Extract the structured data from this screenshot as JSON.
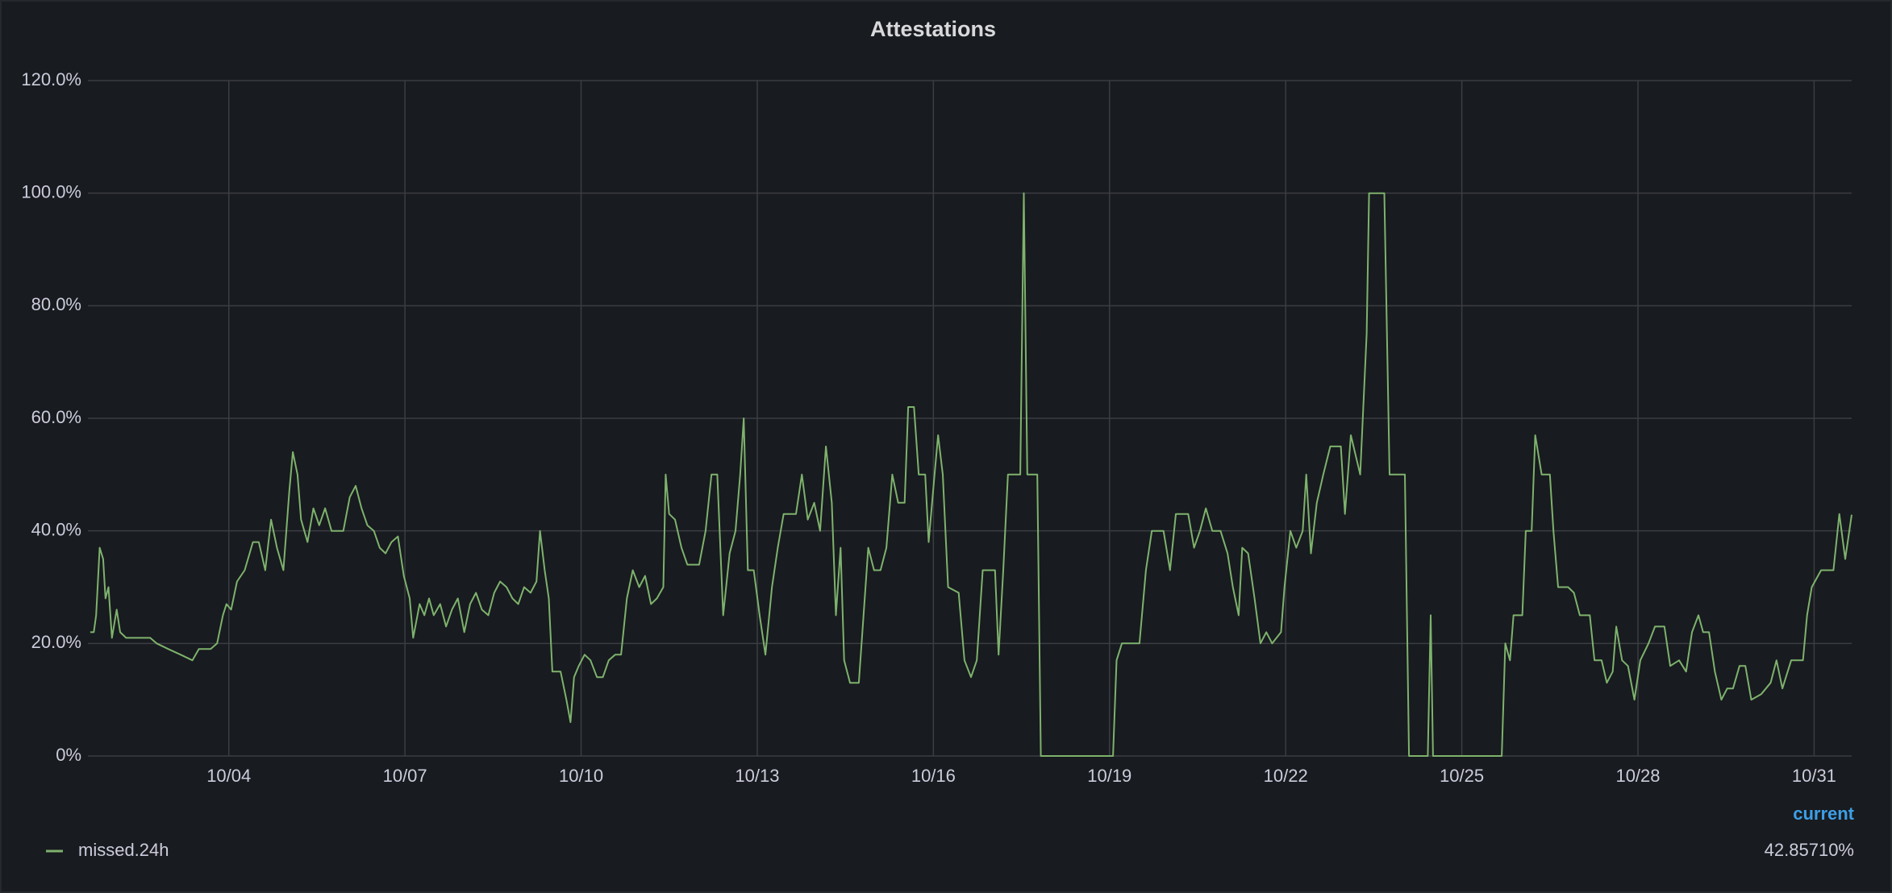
{
  "chart_data": {
    "type": "line",
    "title": "Attestations",
    "x": [
      1.64,
      1.7,
      1.74,
      1.8,
      1.86,
      1.9,
      1.95,
      2.01,
      2.09,
      2.15,
      2.25,
      2.36,
      2.66,
      2.77,
      2.97,
      3.18,
      3.38,
      3.49,
      3.69,
      3.8,
      3.9,
      3.96,
      4.04,
      4.14,
      4.27,
      4.41,
      4.51,
      4.62,
      4.72,
      4.82,
      4.93,
      5.03,
      5.09,
      5.17,
      5.23,
      5.34,
      5.44,
      5.54,
      5.64,
      5.75,
      5.95,
      6.06,
      6.16,
      6.26,
      6.36,
      6.47,
      6.57,
      6.67,
      6.77,
      6.88,
      6.98,
      7.08,
      7.14,
      7.25,
      7.33,
      7.41,
      7.49,
      7.6,
      7.7,
      7.8,
      7.9,
      8.01,
      8.11,
      8.21,
      8.31,
      8.42,
      8.52,
      8.62,
      8.73,
      8.83,
      8.93,
      9.03,
      9.14,
      9.24,
      9.3,
      9.38,
      9.45,
      9.51,
      9.65,
      9.75,
      9.82,
      9.88,
      9.96,
      10.06,
      10.16,
      10.27,
      10.37,
      10.47,
      10.58,
      10.68,
      10.78,
      10.88,
      10.99,
      11.09,
      11.19,
      11.29,
      11.4,
      11.44,
      11.5,
      11.6,
      11.71,
      11.81,
      12.01,
      12.12,
      12.22,
      12.32,
      12.42,
      12.53,
      12.63,
      12.71,
      12.77,
      12.84,
      12.94,
      13.04,
      13.14,
      13.25,
      13.35,
      13.45,
      13.66,
      13.76,
      13.86,
      13.97,
      14.07,
      14.17,
      14.27,
      14.34,
      14.42,
      14.48,
      14.58,
      14.73,
      14.79,
      14.89,
      14.99,
      15.1,
      15.2,
      15.3,
      15.4,
      15.51,
      15.57,
      15.67,
      15.75,
      15.86,
      15.92,
      16.02,
      16.08,
      16.16,
      16.25,
      16.43,
      16.53,
      16.64,
      16.74,
      16.84,
      17.05,
      17.11,
      17.19,
      17.27,
      17.48,
      17.54,
      17.6,
      17.77,
      17.83,
      19.06,
      19.12,
      19.21,
      19.51,
      19.62,
      19.72,
      19.92,
      20.03,
      20.13,
      20.34,
      20.44,
      20.54,
      20.64,
      20.75,
      20.89,
      21.01,
      21.1,
      21.2,
      21.26,
      21.36,
      21.47,
      21.57,
      21.67,
      21.77,
      21.92,
      21.98,
      22.08,
      22.18,
      22.29,
      22.35,
      22.43,
      22.53,
      22.64,
      22.76,
      22.94,
      23.01,
      23.11,
      23.27,
      23.38,
      23.42,
      23.68,
      23.77,
      24.03,
      24.1,
      24.42,
      24.47,
      24.51,
      25.68,
      25.74,
      25.82,
      25.88,
      26.03,
      26.09,
      26.19,
      26.25,
      26.36,
      26.5,
      26.56,
      26.64,
      26.81,
      26.91,
      27.01,
      27.18,
      27.26,
      27.38,
      27.47,
      27.57,
      27.63,
      27.73,
      27.83,
      27.94,
      28.04,
      28.18,
      28.29,
      28.45,
      28.55,
      28.7,
      28.82,
      28.92,
      29.03,
      29.11,
      29.21,
      29.31,
      29.42,
      29.52,
      29.62,
      29.73,
      29.83,
      29.93,
      30.1,
      30.26,
      30.36,
      30.46,
      30.61,
      30.81,
      30.88,
      30.96,
      31.12,
      31.33,
      31.43,
      31.53,
      31.64
    ],
    "series": [
      {
        "name": "missed.24h",
        "color": "#7eb26d",
        "current": "42.85710%",
        "values": [
          22,
          22,
          25,
          37,
          35,
          28,
          30,
          21,
          26,
          22,
          21,
          21,
          21,
          20,
          19,
          18,
          17,
          19,
          19,
          20,
          25,
          27,
          26,
          31,
          33,
          38,
          38,
          33,
          42,
          37,
          33,
          47,
          54,
          50,
          42,
          38,
          44,
          41,
          44,
          40,
          40,
          46,
          48,
          44,
          41,
          40,
          37,
          36,
          38,
          39,
          32,
          28,
          21,
          27,
          25,
          28,
          25,
          27,
          23,
          26,
          28,
          22,
          27,
          29,
          26,
          25,
          29,
          31,
          30,
          28,
          27,
          30,
          29,
          31,
          40,
          33,
          28,
          15,
          15,
          10,
          6,
          14,
          16,
          18,
          17,
          14,
          14,
          17,
          18,
          18,
          28,
          33,
          30,
          32,
          27,
          28,
          30,
          50,
          43,
          42,
          37,
          34,
          34,
          40,
          50,
          50,
          25,
          36,
          40,
          50,
          60,
          33,
          33,
          25,
          18,
          30,
          37,
          43,
          43,
          50,
          42,
          45,
          40,
          55,
          45,
          25,
          37,
          17,
          13,
          13,
          22,
          37,
          33,
          33,
          37,
          50,
          45,
          45,
          62,
          62,
          50,
          50,
          38,
          50,
          57,
          50,
          30,
          29,
          17,
          14,
          17,
          33,
          33,
          18,
          33,
          50,
          50,
          100,
          50,
          50,
          0,
          0,
          17,
          20,
          20,
          33,
          40,
          40,
          33,
          43,
          43,
          37,
          40,
          44,
          40,
          40,
          36,
          30,
          25,
          37,
          36,
          28,
          20,
          22,
          20,
          22,
          30,
          40,
          37,
          40,
          50,
          36,
          45,
          50,
          55,
          55,
          43,
          57,
          50,
          75,
          100,
          100,
          50,
          50,
          0,
          0,
          25,
          0,
          0,
          20,
          17,
          25,
          25,
          40,
          40,
          57,
          50,
          50,
          40,
          30,
          30,
          29,
          25,
          25,
          17,
          17,
          13,
          15,
          23,
          17,
          16,
          10,
          17,
          20,
          23,
          23,
          16,
          17,
          15,
          22,
          25,
          22,
          22,
          15,
          10,
          12,
          12,
          16,
          16,
          10,
          11,
          13,
          17,
          12,
          17,
          17,
          25,
          30,
          33,
          33,
          43,
          35,
          42.8571
        ]
      }
    ],
    "legend_header": "current",
    "xlim": [
      1.6,
      31.64
    ],
    "xticks": [
      {
        "value": 4,
        "label": "10/04"
      },
      {
        "value": 7,
        "label": "10/07"
      },
      {
        "value": 10,
        "label": "10/10"
      },
      {
        "value": 13,
        "label": "10/13"
      },
      {
        "value": 16,
        "label": "10/16"
      },
      {
        "value": 19,
        "label": "10/19"
      },
      {
        "value": 22,
        "label": "10/22"
      },
      {
        "value": 25,
        "label": "10/25"
      },
      {
        "value": 28,
        "label": "10/28"
      },
      {
        "value": 31,
        "label": "10/31"
      }
    ],
    "ylim": [
      0,
      120
    ],
    "yticks": [
      {
        "value": 0,
        "label": "0%"
      },
      {
        "value": 20,
        "label": "20.0%"
      },
      {
        "value": 40,
        "label": "40.0%"
      },
      {
        "value": 60,
        "label": "60.0%"
      },
      {
        "value": 80,
        "label": "80.0%"
      },
      {
        "value": 100,
        "label": "100.0%"
      },
      {
        "value": 120,
        "label": "120.0%"
      }
    ],
    "grid": true
  }
}
